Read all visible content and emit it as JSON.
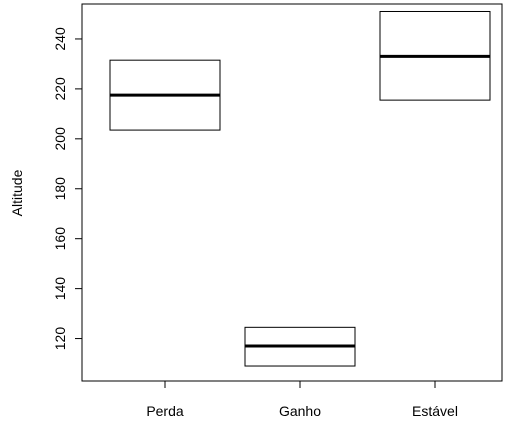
{
  "chart_data": {
    "type": "boxplot",
    "title": "",
    "xlabel": "",
    "ylabel": "Altitude",
    "ylim": [
      103,
      254
    ],
    "yticks": [
      120,
      140,
      160,
      180,
      200,
      220,
      240
    ],
    "grid": false,
    "legend": "none",
    "categories": [
      "Perda",
      "Ganho",
      "Estável"
    ],
    "boxes": [
      {
        "category": "Perda",
        "q1": 203.5,
        "median": 217.5,
        "q3": 231.5
      },
      {
        "category": "Ganho",
        "q1": 109,
        "median": 117,
        "q3": 124.5
      },
      {
        "category": "Estável",
        "q1": 215.5,
        "median": 233,
        "q3": 251
      }
    ],
    "colors": {
      "box_fill": "#ffffff",
      "stroke": "#000000"
    }
  }
}
